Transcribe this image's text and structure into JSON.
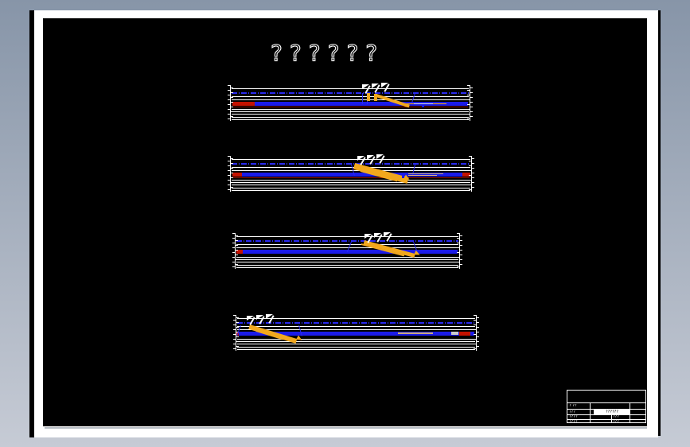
{
  "window": {
    "type": "cad-drawing-preview",
    "paper_color": "#ffffff",
    "canvas_color": "#000000"
  },
  "colors": {
    "bg_top": "#8795a8",
    "bg_bottom": "#c6cbd5",
    "shadow_gray": "#9aa2ac",
    "accent_blue": "#1b1be8",
    "chain_blue": "#2a2af0",
    "accent_red": "#c41200",
    "dark_red": "#8c0f00",
    "accent_orange": "#f2a81d",
    "tan": "#c9a878"
  },
  "title": {
    "text": "??????"
  },
  "drawing": {
    "description": "Four horizontal conveyor elevation sections; orange discharge tripper shown at a different travel position in each section",
    "sections": [
      {
        "label": "section-1",
        "tripper_position": "center-right"
      },
      {
        "label": "section-2",
        "tripper_position": "center"
      },
      {
        "label": "section-3",
        "tripper_position": "center"
      },
      {
        "label": "section-4",
        "tripper_position": "left"
      }
    ]
  },
  "title_block": {
    "row1_left": "? ??",
    "row2_left": "???",
    "row2_value": "??????",
    "row3_left": "????",
    "row3_mid": "???",
    "row4_left": "????",
    "row4_mid": "???"
  }
}
